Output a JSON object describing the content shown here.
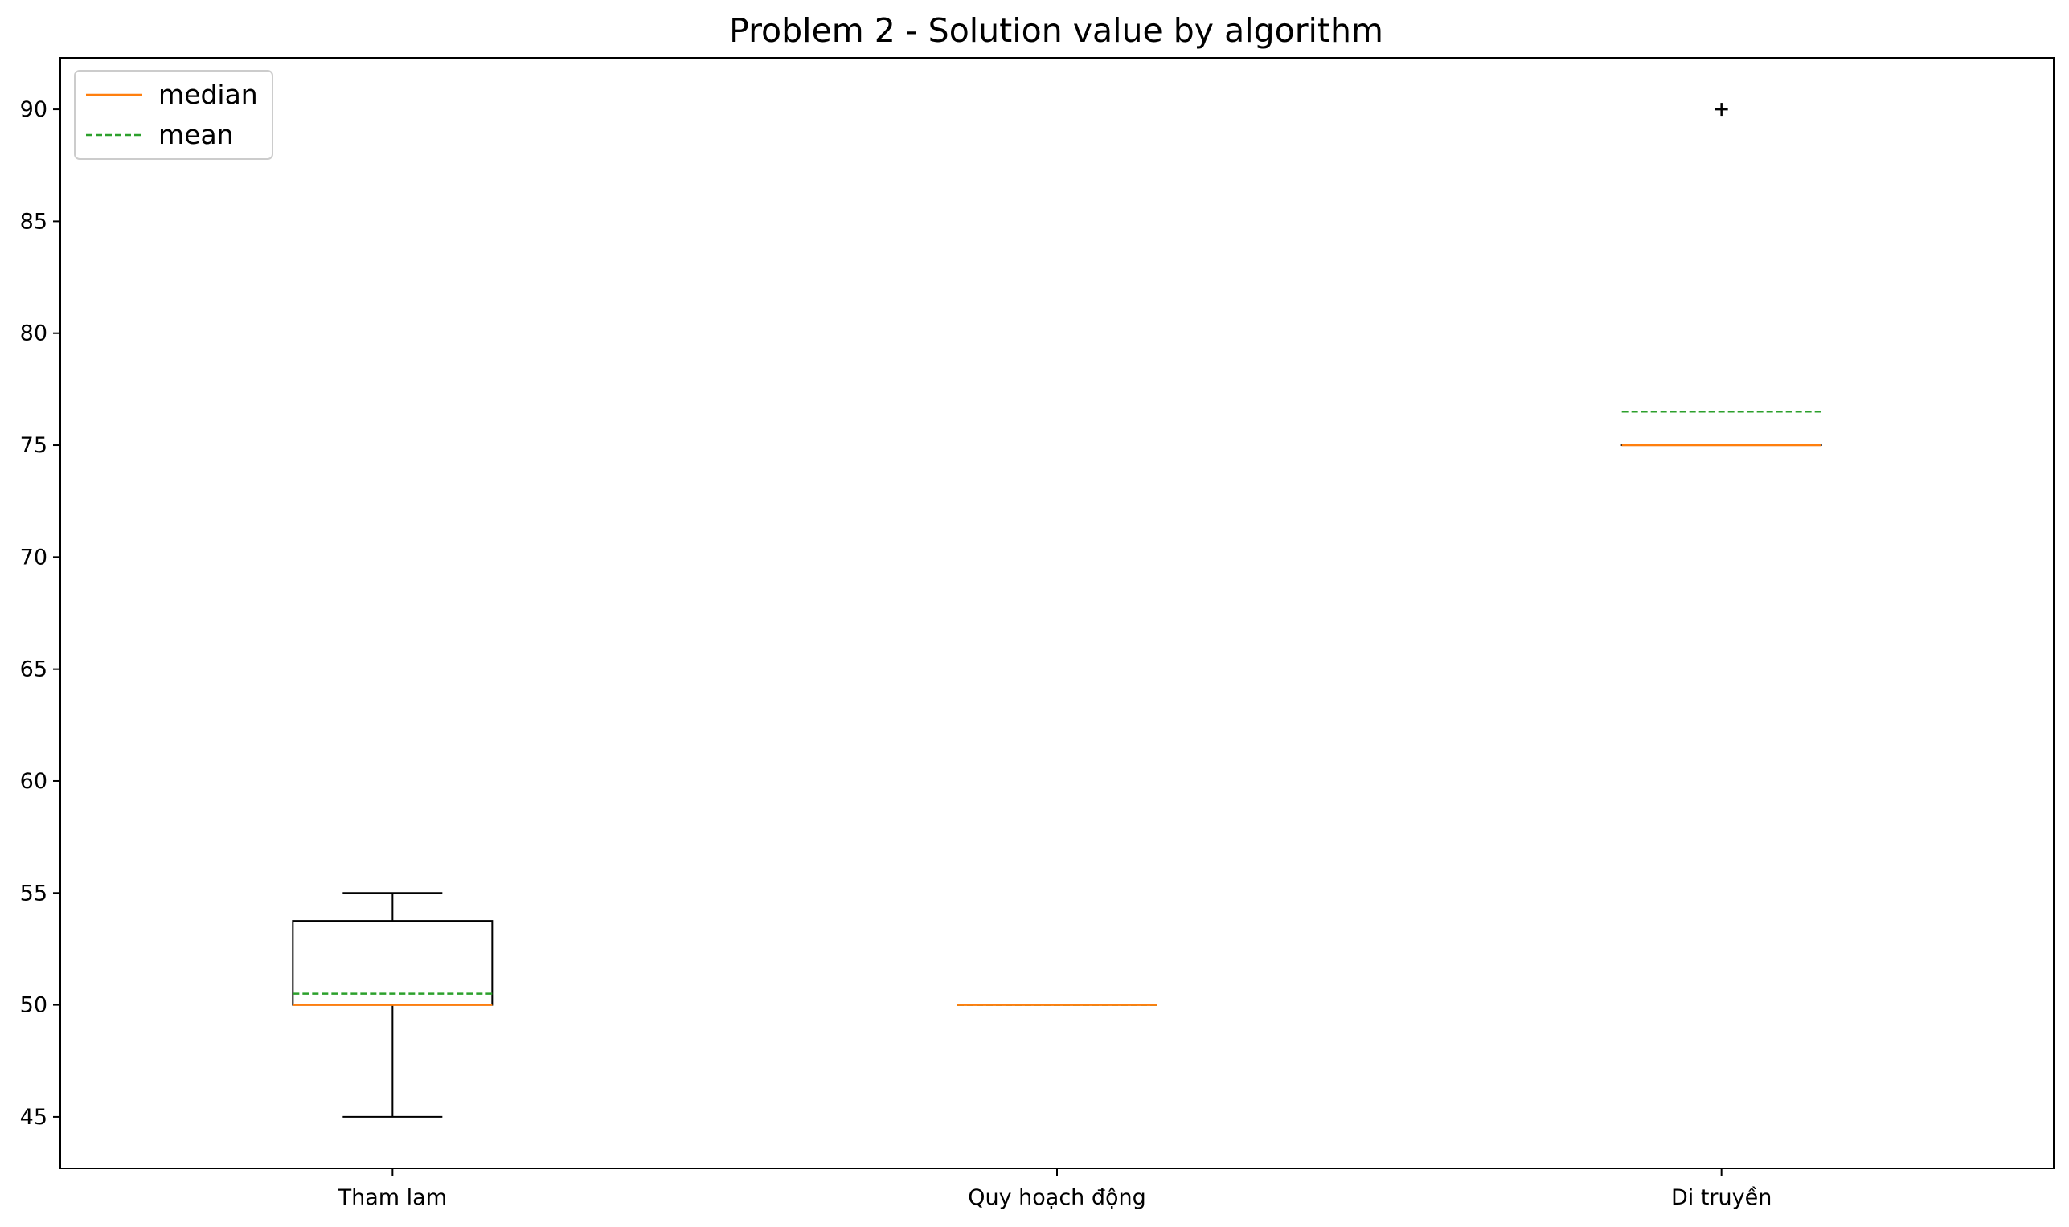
{
  "chart_data": {
    "type": "box",
    "title": "Problem 2 - Solution value by algorithm",
    "xlabel": "",
    "ylabel": "",
    "categories": [
      "Tham lam",
      "Quy hoạch động",
      "Di truyền"
    ],
    "boxes": [
      {
        "category": "Tham lam",
        "whisker_low": 45,
        "q1": 50,
        "median": 50,
        "q3": 53.75,
        "whisker_high": 55,
        "mean": 50.5,
        "outliers": []
      },
      {
        "category": "Quy hoạch động",
        "whisker_low": 50,
        "q1": 50,
        "median": 50,
        "q3": 50,
        "whisker_high": 50,
        "mean": 50,
        "outliers": []
      },
      {
        "category": "Di truyền",
        "whisker_low": 75,
        "q1": 75,
        "median": 75,
        "q3": 75,
        "whisker_high": 75,
        "mean": 76.5,
        "outliers": [
          90
        ]
      }
    ],
    "ylim": [
      42.7,
      92.3
    ],
    "yticks": [
      45,
      50,
      55,
      60,
      65,
      70,
      75,
      80,
      85,
      90
    ],
    "legend": {
      "position": "top-left",
      "entries": [
        {
          "label": "median",
          "color": "#ff7f0e",
          "style": "solid"
        },
        {
          "label": "mean",
          "color": "#2ca02c",
          "style": "dashed"
        }
      ]
    },
    "grid": false,
    "colors": {
      "box": "#000000",
      "median": "#ff7f0e",
      "mean": "#2ca02c",
      "outlier": "#000000"
    }
  }
}
